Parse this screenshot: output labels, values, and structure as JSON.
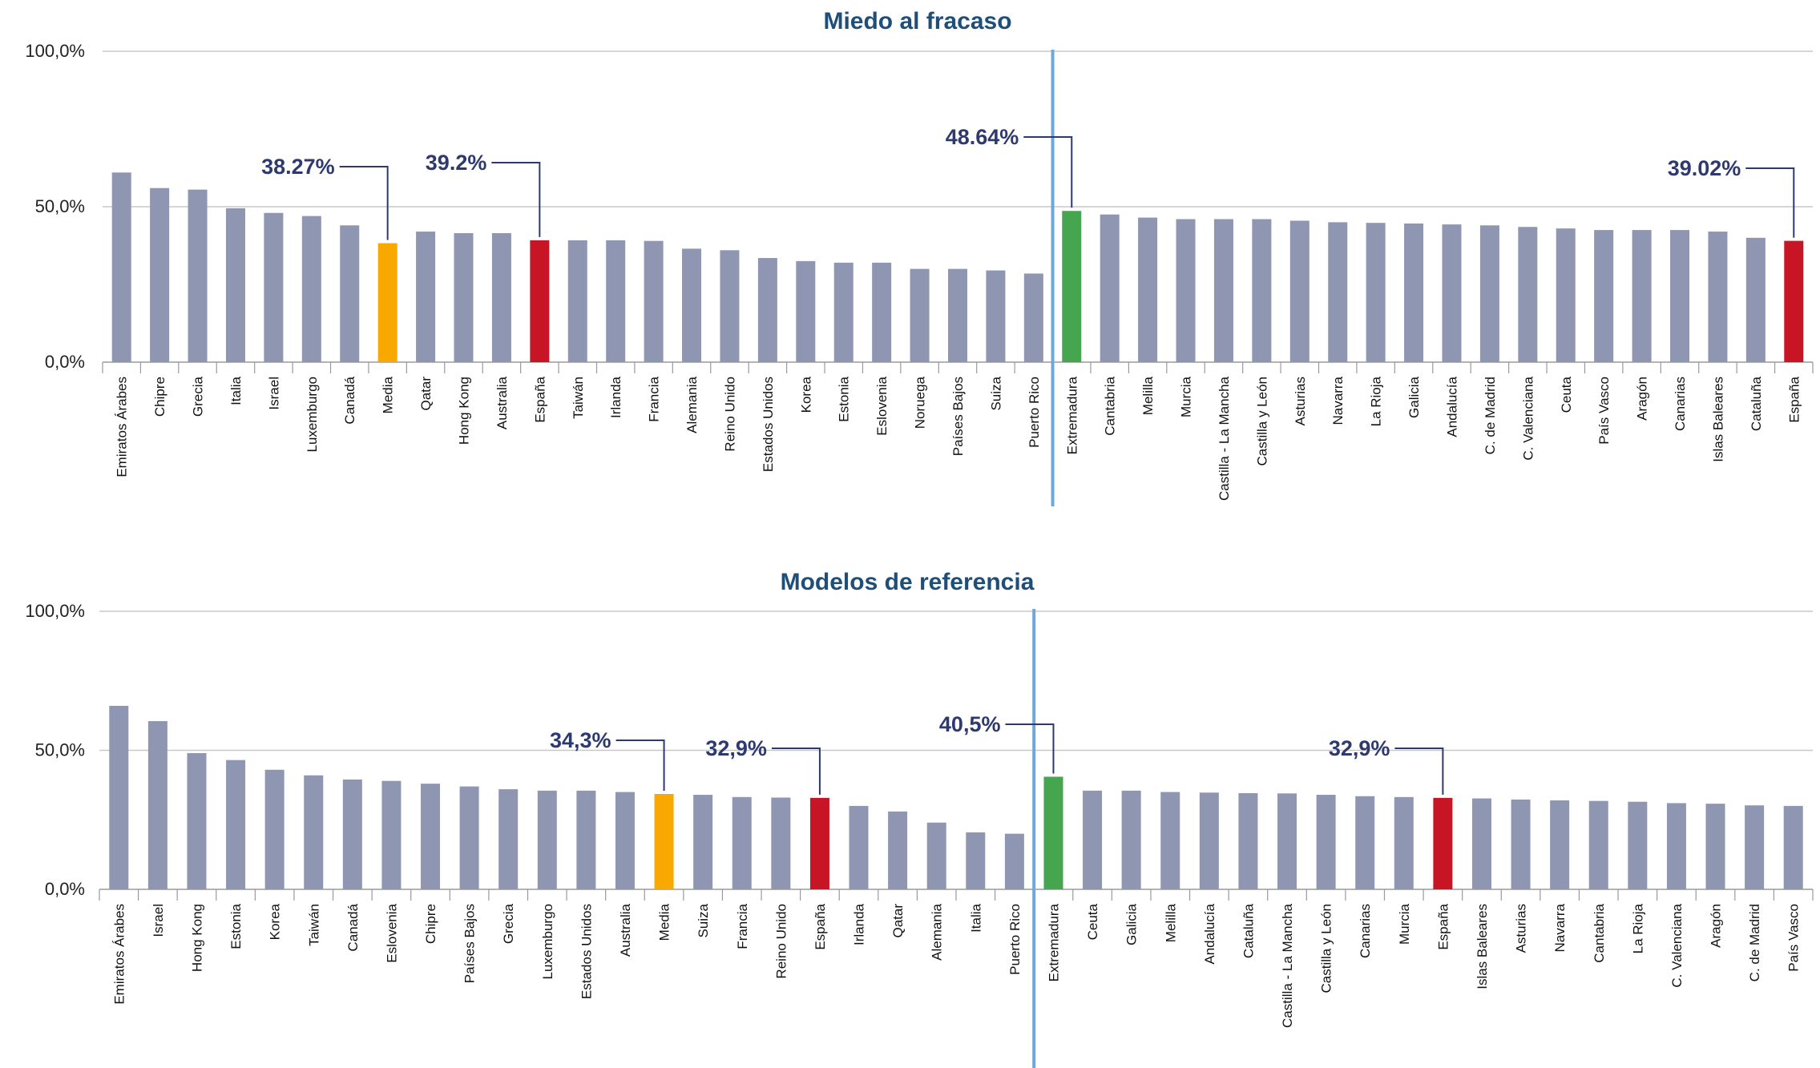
{
  "colors": {
    "default_bar": "#8e96b2",
    "media_bar": "#f9a800",
    "espana_bar": "#c81525",
    "extremadura_bar": "#46a64f",
    "divider": "#6fa8d6",
    "title": "#1f4e79",
    "callout": "#2e3a6e",
    "grid": "#c8c8c8"
  },
  "chart_data": [
    {
      "type": "bar",
      "title": "Miedo al fracaso",
      "ylim": [
        0,
        100
      ],
      "yticks": [
        "0,0%",
        "50,0%",
        "100,0%"
      ],
      "grid": true,
      "categories": [
        "Emiratos Árabes",
        "Chipre",
        "Grecia",
        "Italia",
        "Israel",
        "Luxemburgo",
        "Canadá",
        "Media",
        "Qatar",
        "Hong Kong",
        "Australia",
        "España",
        "Taiwán",
        "Irlanda",
        "Francia",
        "Alemania",
        "Reino Unido",
        "Estados Unidos",
        "Korea",
        "Estonia",
        "Eslovenia",
        "Noruega",
        "Países Bajos",
        "Suiza",
        "Puerto Rico",
        "Extremadura",
        "Cantabria",
        "Melilla",
        "Murcia",
        "Castilla - La Mancha",
        "Castilla y León",
        "Asturias",
        "Navarra",
        "La Rioja",
        "Galicia",
        "Andalucía",
        "C. de Madrid",
        "C. Valenciana",
        "Ceuta",
        "País Vasco",
        "Aragón",
        "Canarias",
        "Islas Baleares",
        "Cataluña",
        "España"
      ],
      "values": [
        61,
        56,
        55.5,
        49.5,
        48,
        47,
        44,
        38.27,
        42,
        41.5,
        41.5,
        39.2,
        39.2,
        39.2,
        39,
        36.5,
        36,
        33.5,
        32.5,
        32,
        32,
        30,
        30,
        29.5,
        28.5,
        48.64,
        47.5,
        46.5,
        46,
        46,
        46,
        45.5,
        45,
        44.8,
        44.6,
        44.3,
        44,
        43.5,
        43,
        42.5,
        42.5,
        42.5,
        42,
        40,
        39.02
      ],
      "highlights": {
        "7": "media",
        "11": "espana",
        "25": "extremadura",
        "44": "espana"
      },
      "divider_after": 24,
      "callouts": [
        {
          "index": 7,
          "label": "38.27%"
        },
        {
          "index": 11,
          "label": "39.2%"
        },
        {
          "index": 25,
          "label": "48.64%"
        },
        {
          "index": 44,
          "label": "39.02%"
        }
      ]
    },
    {
      "type": "bar",
      "title": "Modelos de referencia",
      "ylim": [
        0,
        100
      ],
      "yticks": [
        "0,0%",
        "50,0%",
        "100,0%"
      ],
      "grid": true,
      "categories": [
        "Emiratos Árabes",
        "Israel",
        "Hong Kong",
        "Estonia",
        "Korea",
        "Taiwán",
        "Canadá",
        "Eslovenia",
        "Chipre",
        "Países Bajos",
        "Grecia",
        "Luxemburgo",
        "Estados Unidos",
        "Australia",
        "Media",
        "Suiza",
        "Francia",
        "Reino Unido",
        "España",
        "Irlanda",
        "Qatar",
        "Alemania",
        "Italia",
        "Puerto Rico",
        "Extremadura",
        "Ceuta",
        "Galicia",
        "Melilla",
        "Andalucía",
        "Cataluña",
        "Castilla - La Mancha",
        "Castilla y León",
        "Canarias",
        "Murcia",
        "España",
        "Islas Baleares",
        "Asturias",
        "Navarra",
        "Cantabria",
        "La Rioja",
        "C. Valenciana",
        "Aragón",
        "C. de Madrid",
        "País Vasco"
      ],
      "values": [
        66,
        60.5,
        49,
        46.5,
        43,
        41,
        39.5,
        39,
        38,
        37,
        36,
        35.5,
        35.5,
        35,
        34.3,
        34,
        33.2,
        33,
        32.9,
        30,
        28,
        24,
        20.5,
        20,
        40.5,
        35.5,
        35.5,
        35,
        34.8,
        34.6,
        34.5,
        34,
        33.5,
        33.2,
        32.9,
        32.7,
        32.3,
        32,
        31.8,
        31.5,
        31,
        30.8,
        30.2,
        30
      ],
      "highlights": {
        "14": "media",
        "18": "espana",
        "24": "extremadura",
        "34": "espana"
      },
      "divider_after": 23,
      "callouts": [
        {
          "index": 14,
          "label": "34,3%"
        },
        {
          "index": 18,
          "label": "32,9%"
        },
        {
          "index": 24,
          "label": "40,5%"
        },
        {
          "index": 34,
          "label": "32,9%"
        }
      ]
    }
  ]
}
